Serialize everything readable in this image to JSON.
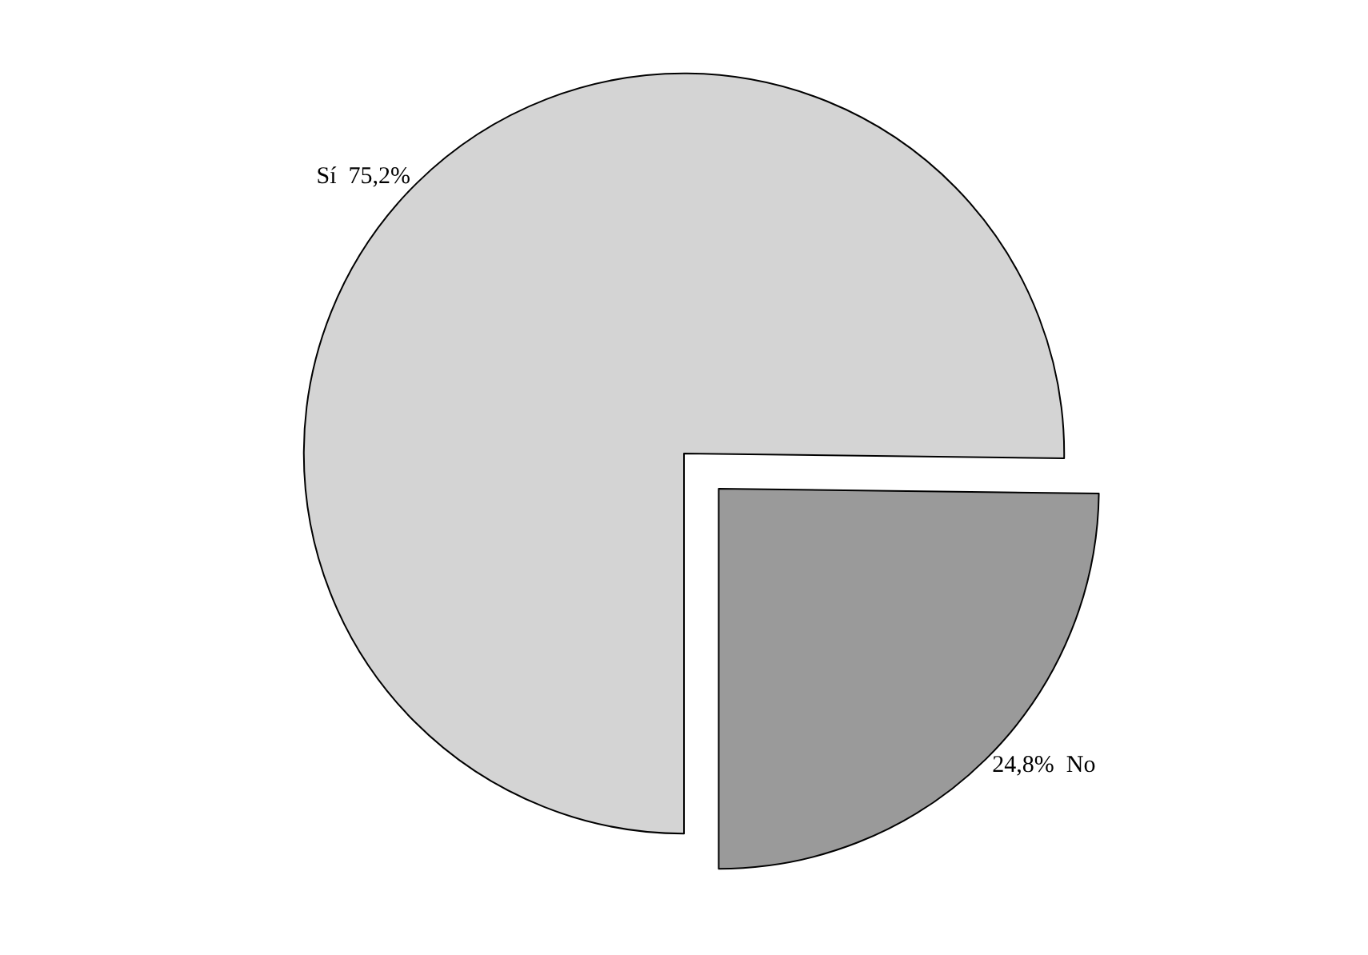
{
  "chart_data": {
    "type": "pie",
    "categories": [
      "Sí",
      "No"
    ],
    "values": [
      75.2,
      24.8
    ],
    "colors": [
      "#d4d4d4",
      "#9a9a9a"
    ],
    "value_labels": [
      "75,2%",
      "24,8%"
    ],
    "legend": false
  }
}
